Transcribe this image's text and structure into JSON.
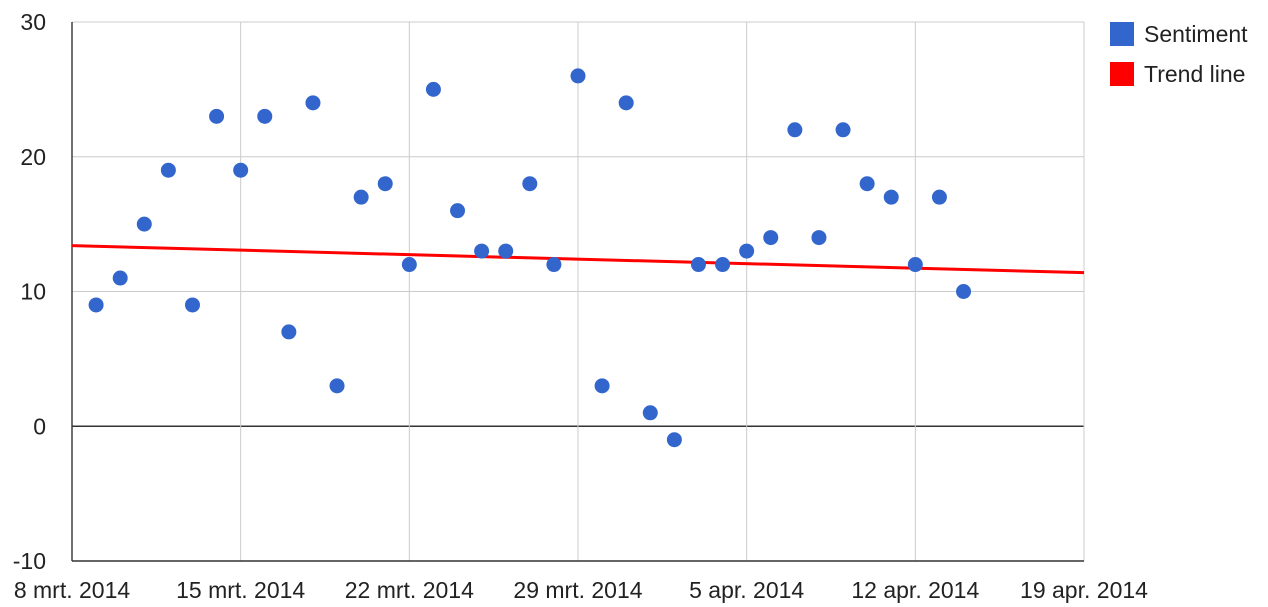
{
  "chart_data": {
    "type": "scatter",
    "title": "",
    "xlabel": "",
    "ylabel": "",
    "x_ticks": [
      "8 mrt. 2014",
      "15 mrt. 2014",
      "22 mrt. 2014",
      "29 mrt. 2014",
      "5 apr. 2014",
      "12 apr. 2014",
      "19 apr. 2014"
    ],
    "y_ticks": [
      "30",
      "20",
      "10",
      "0",
      "-10"
    ],
    "xlim": [
      "2014-03-08",
      "2014-04-19"
    ],
    "ylim": [
      -10,
      30
    ],
    "grid": true,
    "legend_position": "right",
    "series": [
      {
        "name": "Sentiment",
        "color": "#3366cc",
        "marker": "circle",
        "points": [
          {
            "x": "2014-03-09",
            "y": 9
          },
          {
            "x": "2014-03-10",
            "y": 11
          },
          {
            "x": "2014-03-11",
            "y": 15
          },
          {
            "x": "2014-03-12",
            "y": 19
          },
          {
            "x": "2014-03-13",
            "y": 9
          },
          {
            "x": "2014-03-14",
            "y": 23
          },
          {
            "x": "2014-03-15",
            "y": 19
          },
          {
            "x": "2014-03-16",
            "y": 23
          },
          {
            "x": "2014-03-17",
            "y": 7
          },
          {
            "x": "2014-03-18",
            "y": 24
          },
          {
            "x": "2014-03-19",
            "y": 3
          },
          {
            "x": "2014-03-20",
            "y": 17
          },
          {
            "x": "2014-03-21",
            "y": 18
          },
          {
            "x": "2014-03-22",
            "y": 12
          },
          {
            "x": "2014-03-23",
            "y": 25
          },
          {
            "x": "2014-03-24",
            "y": 16
          },
          {
            "x": "2014-03-25",
            "y": 13
          },
          {
            "x": "2014-03-26",
            "y": 13
          },
          {
            "x": "2014-03-27",
            "y": 18
          },
          {
            "x": "2014-03-28",
            "y": 12
          },
          {
            "x": "2014-03-29",
            "y": 26
          },
          {
            "x": "2014-03-30",
            "y": 3
          },
          {
            "x": "2014-03-31",
            "y": 24
          },
          {
            "x": "2014-04-01",
            "y": 1
          },
          {
            "x": "2014-04-02",
            "y": -1
          },
          {
            "x": "2014-04-03",
            "y": 12
          },
          {
            "x": "2014-04-04",
            "y": 12
          },
          {
            "x": "2014-04-05",
            "y": 13
          },
          {
            "x": "2014-04-06",
            "y": 14
          },
          {
            "x": "2014-04-07",
            "y": 22
          },
          {
            "x": "2014-04-08",
            "y": 14
          },
          {
            "x": "2014-04-09",
            "y": 22
          },
          {
            "x": "2014-04-10",
            "y": 18
          },
          {
            "x": "2014-04-11",
            "y": 17
          },
          {
            "x": "2014-04-12",
            "y": 12
          },
          {
            "x": "2014-04-13",
            "y": 17
          },
          {
            "x": "2014-04-14",
            "y": 10
          }
        ]
      },
      {
        "name": "Trend line",
        "color": "#ff0000",
        "marker": "line",
        "points": [
          {
            "x": "2014-03-08",
            "y": 13.4
          },
          {
            "x": "2014-04-19",
            "y": 11.4
          }
        ]
      }
    ]
  }
}
